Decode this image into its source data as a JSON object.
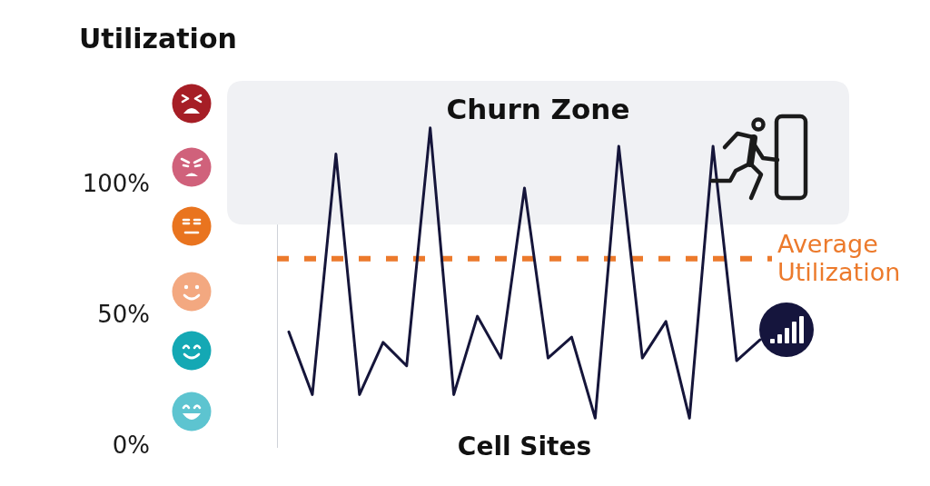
{
  "chart_data": {
    "type": "line",
    "xlabel": "Cell Sites",
    "ylabel": "Utilization",
    "categories": [
      null,
      null,
      null,
      null,
      null,
      null,
      null,
      null,
      null,
      null,
      null,
      null,
      null,
      null,
      null,
      null,
      null,
      null,
      null,
      null,
      null
    ],
    "series": [
      {
        "color": "#15153a",
        "values": [
          44,
          20,
          112,
          20,
          40,
          31,
          122,
          20,
          50,
          34,
          99,
          34,
          42,
          11,
          115,
          34,
          48,
          11,
          115,
          33,
          41
        ]
      }
    ],
    "ylim": [
      0,
      140
    ],
    "yticks": [
      {
        "value": 0,
        "label": "0%"
      },
      {
        "value": 50,
        "label": "50%"
      },
      {
        "value": 100,
        "label": "100%"
      }
    ],
    "tick_labels": "y",
    "marker": "none",
    "line_style": "solid",
    "ref_lines": [
      {
        "axis": "y",
        "value": 72,
        "label": "Average Utilization",
        "color": "#ec7a2c",
        "line_style": "dashed"
      }
    ],
    "bands": [
      {
        "axis": "y",
        "from": 85,
        "to": 140,
        "label": "Churn Zone",
        "color": "#f0f1f4"
      }
    ]
  }
}
